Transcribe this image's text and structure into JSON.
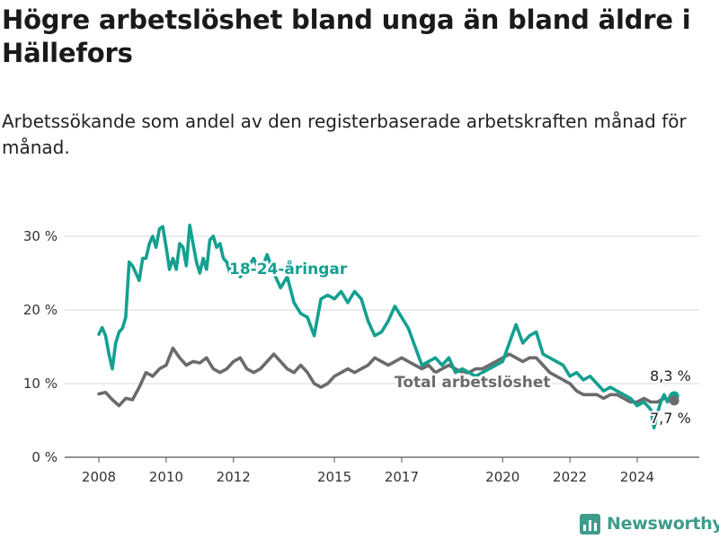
{
  "title": "Högre arbetslöshet bland unga än bland äldre i Hällefors",
  "subtitle": "Arbetssökande som andel av den registerbaserade arbetskraften månad för månad.",
  "brand": {
    "name": "Newsworthy",
    "color": "#3e9c8c"
  },
  "colors": {
    "young": "#14a090",
    "total": "#6b6b6b",
    "grid": "#d9d9d9"
  },
  "chart_data": {
    "type": "line",
    "y_ticks": [
      "0 %",
      "10 %",
      "20 %",
      "30 %"
    ],
    "y_tick_values": [
      0,
      10,
      20,
      30
    ],
    "x_ticks": [
      "2008",
      "2010",
      "2012",
      "2015",
      "2017",
      "2020",
      "2022",
      "2024"
    ],
    "x_tick_values": [
      2008,
      2010,
      2012,
      2015,
      2017,
      2020,
      2022,
      2024
    ],
    "xlim": [
      2008,
      2025.3
    ],
    "ylim": [
      0,
      31
    ],
    "grid": true,
    "series": [
      {
        "name": "18-24-åringar",
        "color": "#14a090",
        "end_label": "8,3 %",
        "x": [
          2008.0,
          2008.1,
          2008.2,
          2008.3,
          2008.4,
          2008.5,
          2008.6,
          2008.7,
          2008.8,
          2008.9,
          2009.0,
          2009.1,
          2009.2,
          2009.3,
          2009.4,
          2009.5,
          2009.6,
          2009.7,
          2009.8,
          2009.9,
          2010.0,
          2010.1,
          2010.2,
          2010.3,
          2010.4,
          2010.5,
          2010.6,
          2010.7,
          2010.8,
          2010.9,
          2011.0,
          2011.1,
          2011.2,
          2011.3,
          2011.4,
          2011.5,
          2011.6,
          2011.7,
          2011.8,
          2011.9,
          2012.0,
          2012.2,
          2012.4,
          2012.6,
          2012.8,
          2013.0,
          2013.2,
          2013.4,
          2013.6,
          2013.8,
          2014.0,
          2014.2,
          2014.4,
          2014.6,
          2014.8,
          2015.0,
          2015.2,
          2015.4,
          2015.6,
          2015.8,
          2016.0,
          2016.2,
          2016.4,
          2016.6,
          2016.8,
          2017.0,
          2017.2,
          2017.4,
          2017.6,
          2017.8,
          2018.0,
          2018.2,
          2018.4,
          2018.6,
          2018.8,
          2019.0,
          2019.2,
          2019.4,
          2019.6,
          2019.8,
          2020.0,
          2020.2,
          2020.4,
          2020.6,
          2020.8,
          2021.0,
          2021.2,
          2021.4,
          2021.6,
          2021.8,
          2022.0,
          2022.2,
          2022.4,
          2022.6,
          2022.8,
          2023.0,
          2023.2,
          2023.4,
          2023.6,
          2023.8,
          2024.0,
          2024.2,
          2024.4,
          2024.5,
          2024.6,
          2024.7,
          2024.8,
          2024.9,
          2025.0,
          2025.1
        ],
        "y": [
          16.7,
          17.6,
          16.5,
          14.0,
          12.0,
          15.5,
          17.0,
          17.5,
          19.0,
          26.5,
          26.0,
          25.0,
          24.0,
          27.0,
          27.0,
          29.0,
          30.0,
          28.5,
          31.0,
          31.3,
          28.5,
          25.5,
          27.0,
          25.5,
          29.0,
          28.5,
          26.0,
          31.5,
          29.0,
          26.5,
          25.0,
          27.0,
          25.5,
          29.5,
          30.0,
          28.5,
          29.0,
          27.0,
          26.5,
          25.0,
          26.5,
          24.5,
          25.5,
          27.0,
          25.0,
          27.5,
          25.0,
          23.0,
          24.5,
          21.0,
          19.5,
          19.0,
          16.5,
          21.5,
          22.0,
          21.5,
          22.5,
          21.0,
          22.5,
          21.5,
          18.5,
          16.5,
          17.0,
          18.5,
          20.5,
          19.0,
          17.5,
          15.0,
          12.5,
          13.0,
          13.5,
          12.5,
          13.5,
          11.5,
          12.0,
          11.5,
          11.0,
          11.5,
          12.0,
          12.5,
          13.0,
          15.5,
          18.0,
          15.5,
          16.5,
          17.0,
          14.0,
          13.5,
          13.0,
          12.5,
          11.0,
          11.5,
          10.5,
          11.0,
          10.0,
          9.0,
          9.5,
          9.0,
          8.5,
          8.0,
          7.0,
          7.5,
          6.5,
          4.0,
          6.0,
          7.5,
          8.5,
          7.5,
          8.5,
          8.3
        ]
      },
      {
        "name": "Total arbetslöshet",
        "color": "#6b6b6b",
        "end_label": "7,7 %",
        "x": [
          2008.0,
          2008.2,
          2008.4,
          2008.6,
          2008.8,
          2009.0,
          2009.2,
          2009.4,
          2009.6,
          2009.8,
          2010.0,
          2010.2,
          2010.4,
          2010.6,
          2010.8,
          2011.0,
          2011.2,
          2011.4,
          2011.6,
          2011.8,
          2012.0,
          2012.2,
          2012.4,
          2012.6,
          2012.8,
          2013.0,
          2013.2,
          2013.4,
          2013.6,
          2013.8,
          2014.0,
          2014.2,
          2014.4,
          2014.6,
          2014.8,
          2015.0,
          2015.2,
          2015.4,
          2015.6,
          2015.8,
          2016.0,
          2016.2,
          2016.4,
          2016.6,
          2016.8,
          2017.0,
          2017.2,
          2017.4,
          2017.6,
          2017.8,
          2018.0,
          2018.2,
          2018.4,
          2018.6,
          2018.8,
          2019.0,
          2019.2,
          2019.4,
          2019.6,
          2019.8,
          2020.0,
          2020.2,
          2020.4,
          2020.6,
          2020.8,
          2021.0,
          2021.2,
          2021.4,
          2021.6,
          2021.8,
          2022.0,
          2022.2,
          2022.4,
          2022.6,
          2022.8,
          2023.0,
          2023.2,
          2023.4,
          2023.6,
          2023.8,
          2024.0,
          2024.2,
          2024.4,
          2024.6,
          2024.8,
          2025.0,
          2025.1
        ],
        "y": [
          8.6,
          8.8,
          7.8,
          7.0,
          8.0,
          7.8,
          9.5,
          11.5,
          11.0,
          12.0,
          12.5,
          14.8,
          13.5,
          12.5,
          13.0,
          12.8,
          13.5,
          12.0,
          11.5,
          12.0,
          13.0,
          13.5,
          12.0,
          11.5,
          12.0,
          13.0,
          14.0,
          13.0,
          12.0,
          11.5,
          12.5,
          11.5,
          10.0,
          9.5,
          10.0,
          11.0,
          11.5,
          12.0,
          11.5,
          12.0,
          12.5,
          13.5,
          13.0,
          12.5,
          13.0,
          13.5,
          13.0,
          12.5,
          12.0,
          12.5,
          11.5,
          12.0,
          12.5,
          12.0,
          11.5,
          11.5,
          12.0,
          12.0,
          12.5,
          13.0,
          13.5,
          14.0,
          13.5,
          13.0,
          13.5,
          13.5,
          12.5,
          11.5,
          11.0,
          10.5,
          10.0,
          9.0,
          8.5,
          8.5,
          8.5,
          8.0,
          8.5,
          8.5,
          8.0,
          7.5,
          7.5,
          8.0,
          7.5,
          7.5,
          8.0,
          7.7,
          7.7
        ]
      }
    ]
  }
}
